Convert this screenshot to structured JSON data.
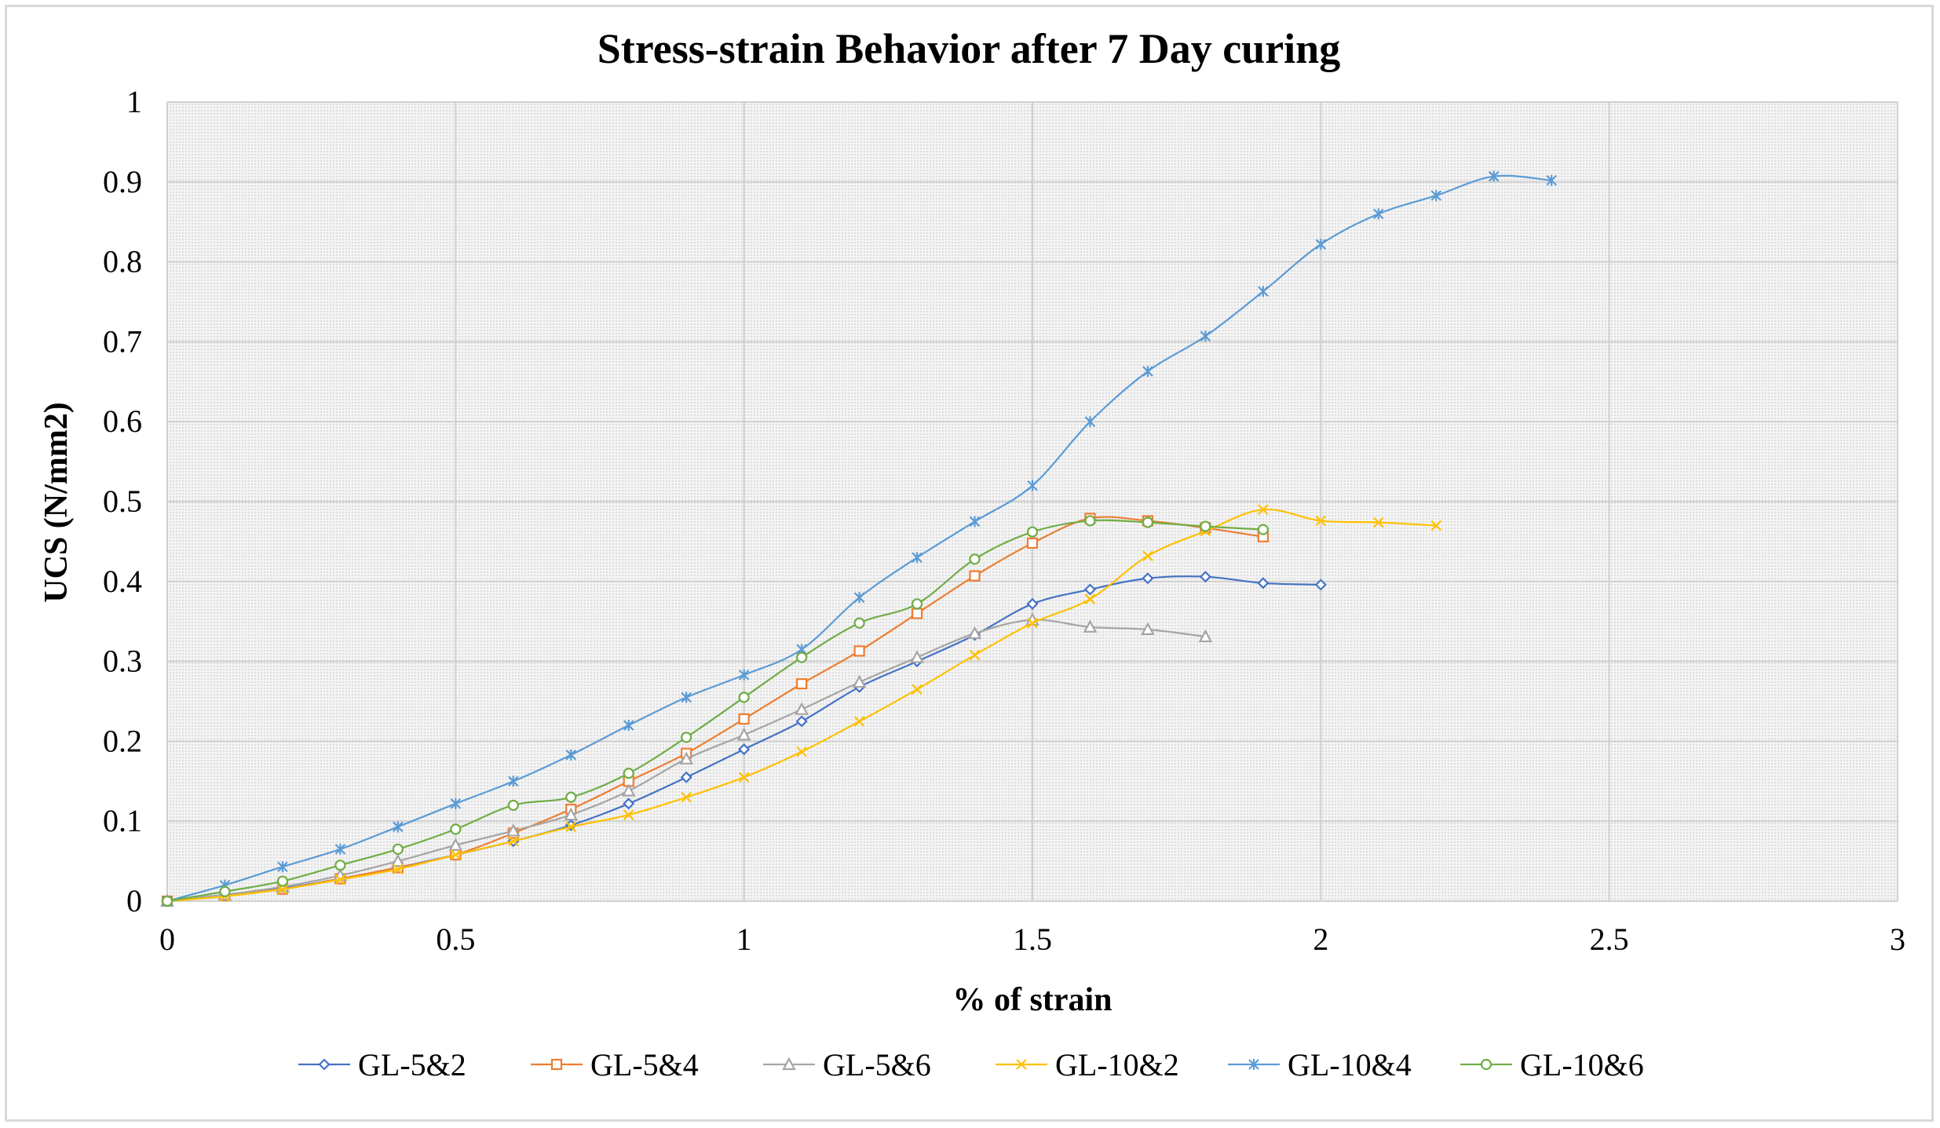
{
  "chart_data": {
    "type": "line",
    "title": "Stress-strain Behavior after 7 Day curing",
    "xlabel": "% of strain",
    "ylabel": "UCS  (N/mm2)",
    "xlim": [
      0,
      3
    ],
    "ylim": [
      0,
      1
    ],
    "xticks": [
      0,
      0.5,
      1,
      1.5,
      2,
      2.5,
      3
    ],
    "xtick_labels": [
      "0",
      "0.5",
      "1",
      "1.5",
      "2",
      "2.5",
      "3"
    ],
    "yticks": [
      0,
      0.1,
      0.2,
      0.3,
      0.4,
      0.5,
      0.6,
      0.7,
      0.8,
      0.9,
      1
    ],
    "ytick_labels": [
      "0",
      "0.1",
      "0.2",
      "0.3",
      "0.4",
      "0.5",
      "0.6",
      "0.7",
      "0.8",
      "0.9",
      "1"
    ],
    "grid": true,
    "legend_position": "bottom",
    "series": [
      {
        "name": "GL-5&2",
        "color": "#4472c4",
        "marker": "diamond",
        "x": [
          0,
          0.1,
          0.2,
          0.3,
          0.4,
          0.5,
          0.6,
          0.7,
          0.8,
          0.9,
          1.0,
          1.1,
          1.2,
          1.3,
          1.4,
          1.5,
          1.6,
          1.7,
          1.8,
          1.9,
          2.0
        ],
        "y": [
          0,
          0.008,
          0.016,
          0.028,
          0.042,
          0.058,
          0.075,
          0.095,
          0.122,
          0.155,
          0.19,
          0.225,
          0.268,
          0.3,
          0.333,
          0.372,
          0.39,
          0.404,
          0.406,
          0.398,
          0.396
        ]
      },
      {
        "name": "GL-5&4",
        "color": "#ed7d31",
        "marker": "square",
        "x": [
          0,
          0.1,
          0.2,
          0.3,
          0.4,
          0.5,
          0.6,
          0.7,
          0.8,
          0.9,
          1.0,
          1.1,
          1.2,
          1.3,
          1.4,
          1.5,
          1.6,
          1.7,
          1.8,
          1.9
        ],
        "y": [
          0,
          0.007,
          0.015,
          0.028,
          0.042,
          0.058,
          0.085,
          0.115,
          0.15,
          0.185,
          0.228,
          0.272,
          0.313,
          0.36,
          0.407,
          0.448,
          0.479,
          0.476,
          0.467,
          0.456
        ]
      },
      {
        "name": "GL-5&6",
        "color": "#a5a5a5",
        "marker": "triangle",
        "x": [
          0,
          0.1,
          0.2,
          0.3,
          0.4,
          0.5,
          0.6,
          0.7,
          0.8,
          0.9,
          1.0,
          1.1,
          1.2,
          1.3,
          1.4,
          1.5,
          1.6,
          1.7,
          1.8
        ],
        "y": [
          0,
          0.008,
          0.018,
          0.032,
          0.05,
          0.07,
          0.088,
          0.108,
          0.138,
          0.178,
          0.208,
          0.24,
          0.274,
          0.305,
          0.335,
          0.352,
          0.343,
          0.34,
          0.331
        ]
      },
      {
        "name": "GL-10&2",
        "color": "#ffc000",
        "marker": "x",
        "x": [
          0,
          0.1,
          0.2,
          0.3,
          0.4,
          0.5,
          0.6,
          0.7,
          0.8,
          0.9,
          1.0,
          1.1,
          1.2,
          1.3,
          1.4,
          1.5,
          1.6,
          1.7,
          1.8,
          1.9,
          2.0,
          2.1,
          2.2
        ],
        "y": [
          0,
          0.006,
          0.015,
          0.027,
          0.04,
          0.058,
          0.075,
          0.093,
          0.108,
          0.13,
          0.155,
          0.187,
          0.225,
          0.265,
          0.308,
          0.348,
          0.378,
          0.432,
          0.463,
          0.49,
          0.476,
          0.474,
          0.47
        ]
      },
      {
        "name": "GL-10&4",
        "color": "#5b9bd5",
        "marker": "star",
        "x": [
          0,
          0.1,
          0.2,
          0.3,
          0.4,
          0.5,
          0.6,
          0.7,
          0.8,
          0.9,
          1.0,
          1.1,
          1.2,
          1.3,
          1.4,
          1.5,
          1.6,
          1.7,
          1.8,
          1.9,
          2.0,
          2.1,
          2.2,
          2.3,
          2.4
        ],
        "y": [
          0,
          0.02,
          0.043,
          0.065,
          0.093,
          0.122,
          0.15,
          0.183,
          0.22,
          0.255,
          0.283,
          0.315,
          0.38,
          0.43,
          0.475,
          0.52,
          0.6,
          0.663,
          0.707,
          0.763,
          0.822,
          0.86,
          0.883,
          0.907,
          0.902
        ]
      },
      {
        "name": "GL-10&6",
        "color": "#70ad47",
        "marker": "circle",
        "x": [
          0,
          0.1,
          0.2,
          0.3,
          0.4,
          0.5,
          0.6,
          0.7,
          0.8,
          0.9,
          1.0,
          1.1,
          1.2,
          1.3,
          1.4,
          1.5,
          1.6,
          1.7,
          1.8,
          1.9
        ],
        "y": [
          0,
          0.012,
          0.025,
          0.045,
          0.065,
          0.09,
          0.12,
          0.13,
          0.16,
          0.205,
          0.255,
          0.305,
          0.348,
          0.372,
          0.428,
          0.462,
          0.476,
          0.474,
          0.469,
          0.465
        ]
      }
    ]
  }
}
